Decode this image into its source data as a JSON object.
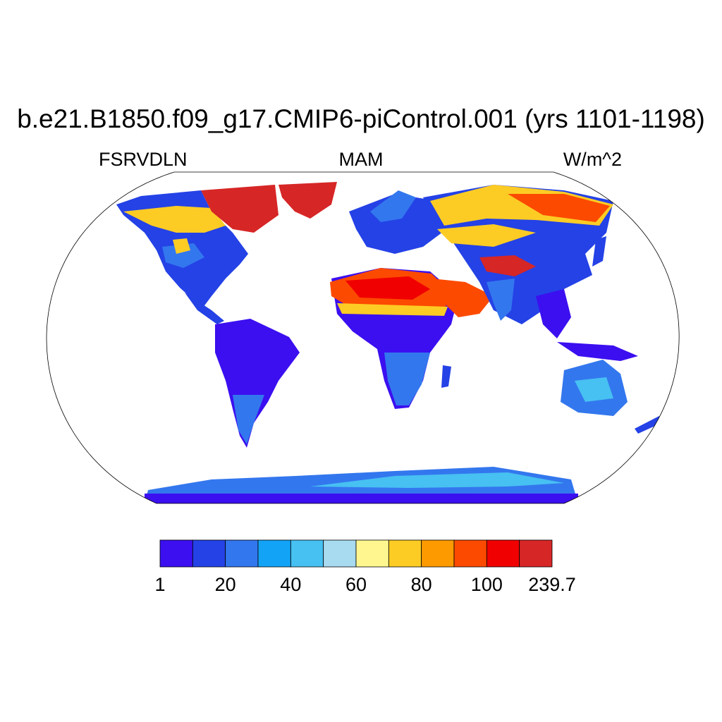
{
  "title": "b.e21.B1850.f09_g17.CMIP6-piControl.001 (yrs 1101-1198)",
  "subtitle_left": "FSRVDLN",
  "subtitle_center": "MAM",
  "subtitle_right": "W/m^2",
  "colorbar": {
    "colors": [
      "#3b0ff0",
      "#2442e6",
      "#3377ee",
      "#12a3f7",
      "#47c0f2",
      "#a8daf0",
      "#fff68f",
      "#fdcc24",
      "#fc9a00",
      "#fc4a00",
      "#f00000",
      "#d62626"
    ],
    "tick_labels": [
      "1",
      "20",
      "40",
      "60",
      "80",
      "100",
      "239.7"
    ]
  }
}
